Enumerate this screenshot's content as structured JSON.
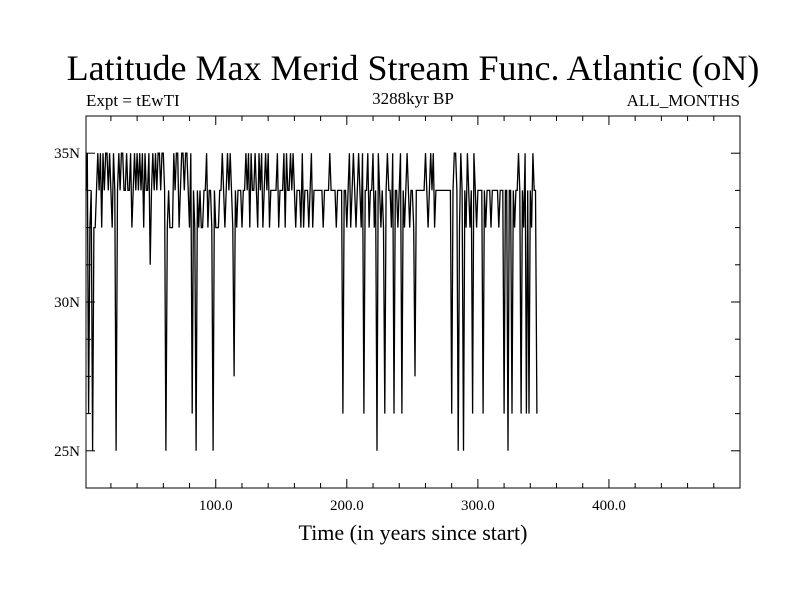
{
  "chart_data": {
    "type": "line",
    "title": "Latitude Max Merid Stream Func. Atlantic (oN)",
    "subtitle_left": "Expt = tEwTI",
    "subtitle_center": "3288kyr BP",
    "subtitle_right": "ALL_MONTHS",
    "xlabel": "Time (in years since start)",
    "ylabel": "",
    "xlim": [
      1,
      500
    ],
    "ylim": [
      23.75,
      36.25
    ],
    "x_ticks": [
      100,
      200,
      300,
      400
    ],
    "x_tick_labels": [
      "100.0",
      "200.0",
      "300.0",
      "400.0"
    ],
    "y_ticks": [
      25,
      30,
      35
    ],
    "y_tick_labels": [
      "25N",
      "30N",
      "35N"
    ],
    "y_levels_observed": [
      25,
      26.25,
      27.5,
      31.25,
      32.5,
      33.75,
      35
    ],
    "baseline_level": 33.75,
    "series": [
      {
        "name": "latitude",
        "x_start": 1,
        "x_step": 1,
        "values": [
          33.75,
          35,
          26.25,
          32.5,
          33.75,
          25,
          32.5,
          32.5,
          33.75,
          35,
          33.75,
          35,
          32.5,
          35,
          33.75,
          35,
          35,
          33.75,
          35,
          33.75,
          32.5,
          35,
          33.75,
          25,
          33.75,
          35,
          33.75,
          35,
          35,
          33.75,
          33.75,
          35,
          33.75,
          33.75,
          35,
          32.5,
          33.75,
          35,
          33.75,
          35,
          33.75,
          35,
          33.75,
          35,
          32.5,
          35,
          33.75,
          33.75,
          35,
          31.25,
          33.75,
          35,
          33.75,
          35,
          33.75,
          35,
          35,
          33.75,
          35,
          35,
          33.75,
          25,
          32.5,
          33.75,
          32.5,
          32.5,
          32.5,
          35,
          33.75,
          35,
          35,
          32.5,
          33.75,
          35,
          35,
          33.75,
          35,
          35,
          33.75,
          32.5,
          35,
          26.25,
          33.75,
          32.5,
          25,
          33.75,
          32.5,
          33.75,
          32.5,
          32.5,
          33.75,
          33.75,
          35,
          32.5,
          33.75,
          33.75,
          32.5,
          25,
          33.75,
          32.5,
          32.5,
          32.5,
          33.75,
          33.75,
          35,
          33.75,
          32.5,
          33.75,
          35,
          33.75,
          35,
          33.75,
          32.5,
          27.5,
          33.75,
          32.5,
          33.75,
          33.75,
          33.75,
          32.5,
          33.75,
          33.75,
          35,
          33.75,
          35,
          32.5,
          35,
          33.75,
          33.75,
          35,
          33.75,
          32.5,
          35,
          33.75,
          35,
          32.5,
          33.75,
          35,
          33.75,
          35,
          32.5,
          33.75,
          33.75,
          33.75,
          33.75,
          33.75,
          35,
          32.5,
          33.75,
          33.75,
          33.75,
          35,
          32.5,
          35,
          33.75,
          33.75,
          35,
          33.75,
          35,
          33.75,
          32.5,
          33.75,
          33.75,
          33.75,
          32.5,
          35,
          32.5,
          33.75,
          33.75,
          33.75,
          32.5,
          33.75,
          35,
          32.5,
          33.75,
          33.75,
          33.75,
          33.75,
          33.75,
          33.75,
          33.75,
          32.5,
          33.75,
          33.75,
          33.75,
          33.75,
          35,
          33.75,
          33.75,
          33.75,
          33.75,
          32.5,
          33.75,
          33.75,
          33.75,
          33.75,
          26.25,
          33.75,
          33.75,
          32.5,
          33.75,
          35,
          32.5,
          33.75,
          35,
          33.75,
          32.5,
          33.75,
          35,
          33.75,
          32.5,
          35,
          26.25,
          33.75,
          33.75,
          35,
          32.5,
          33.75,
          33.75,
          35,
          32.5,
          33.75,
          25,
          35,
          33.75,
          32.5,
          33.75,
          32.5,
          26.25,
          33.75,
          35,
          33.75,
          33.75,
          32.5,
          35,
          26.25,
          33.75,
          33.75,
          32.5,
          33.75,
          35,
          26.25,
          33.75,
          32.5,
          33.75,
          35,
          33.75,
          32.5,
          33.75,
          33.75,
          32.5,
          27.5,
          33.75,
          33.75,
          33.75,
          33.75,
          33.75,
          33.75,
          33.75,
          35,
          33.75,
          32.5,
          33.75,
          35,
          33.75,
          35,
          32.5,
          33.75,
          33.75,
          33.75,
          33.75,
          33.75,
          33.75,
          33.75,
          33.75,
          33.75,
          33.75,
          33.75,
          33.75,
          26.25,
          33.75,
          35,
          35,
          33.75,
          25,
          32.5,
          35,
          33.75,
          25,
          33.75,
          32.5,
          35,
          33.75,
          32.5,
          33.75,
          26.25,
          35,
          33.75,
          32.5,
          33.75,
          33.75,
          33.75,
          33.75,
          26.25,
          33.75,
          32.5,
          33.75,
          33.75,
          33.75,
          32.5,
          33.75,
          33.75,
          33.75,
          33.75,
          33.75,
          32.5,
          33.75,
          33.75,
          33.75,
          26.25,
          33.75,
          33.75,
          25,
          33.75,
          33.75,
          26.25,
          33.75,
          32.5,
          33.75,
          33.75,
          35,
          33.75,
          26.25,
          33.75,
          32.5,
          35,
          26.25,
          33.75,
          26.25,
          33.75,
          32.5,
          35,
          33.75,
          33.75,
          26.25
        ]
      }
    ]
  }
}
